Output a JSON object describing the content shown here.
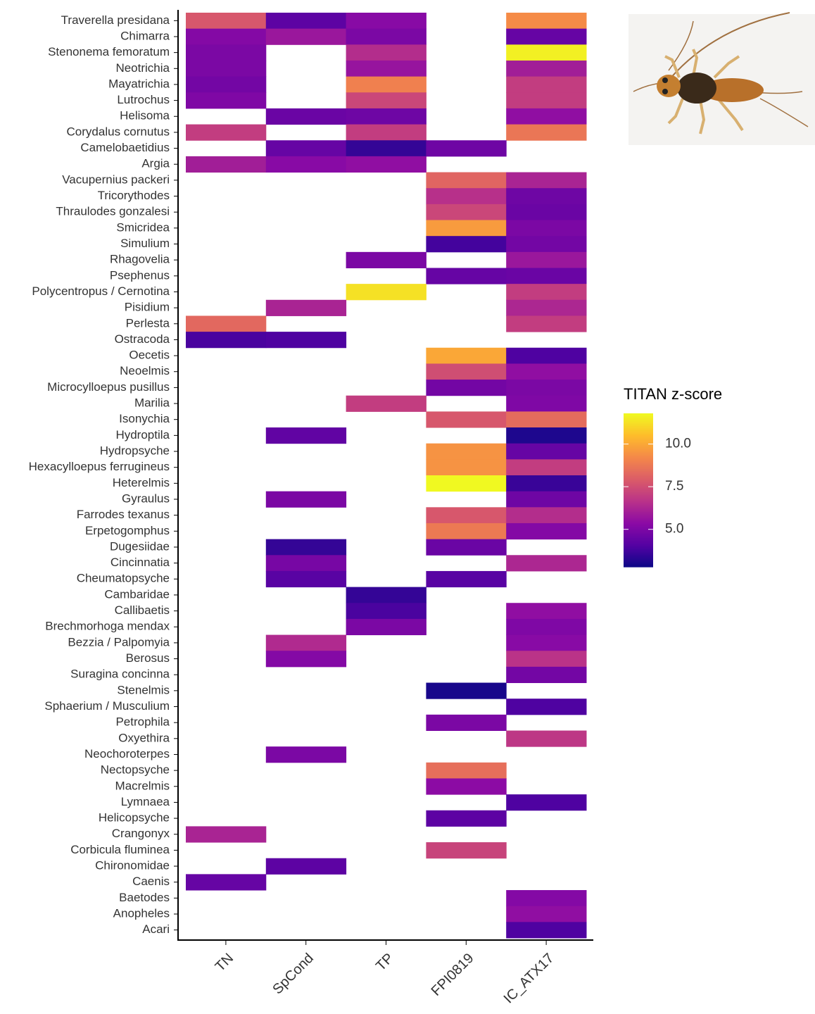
{
  "chart_data": {
    "type": "heatmap",
    "categories": [
      "Traverella presidana",
      "Chimarra",
      "Stenonema femoratum",
      "Neotrichia",
      "Mayatrichia",
      "Lutrochus",
      "Helisoma",
      "Corydalus cornutus",
      "Camelobaetidius",
      "Argia",
      "Vacupernius packeri",
      "Tricorythodes",
      "Thraulodes gonzalesi",
      "Smicridea",
      "Simulium",
      "Rhagovelia",
      "Psephenus",
      "Polycentropus / Cernotina",
      "Pisidium",
      "Perlesta",
      "Ostracoda",
      "Oecetis",
      "Neoelmis",
      "Microcylloepus pusillus",
      "Marilia",
      "Isonychia",
      "Hydroptila",
      "Hydropsyche",
      "Hexacylloepus ferrugineus",
      "Heterelmis",
      "Gyraulus",
      "Farrodes texanus",
      "Erpetogomphus",
      "Dugesiidae",
      "Cincinnatia",
      "Cheumatopsyche",
      "Cambaridae",
      "Callibaetis",
      "Brechmorhoga mendax",
      "Bezzia / Palpomyia",
      "Berosus",
      "Suragina concinna",
      "Stenelmis",
      "Sphaerium / Musculium",
      "Petrophila",
      "Oxyethira",
      "Neochoroterpes",
      "Nectopsyche",
      "Macrelmis",
      "Lymnaea",
      "Helicopsyche",
      "Crangonyx",
      "Corbicula fluminea",
      "Chironomidae",
      "Caenis",
      "Baetodes",
      "Anopheles",
      "Acari"
    ],
    "columns": [
      "TN",
      "SpCond",
      "TP",
      "FPI0819",
      "IC_ATX17"
    ],
    "values": [
      [
        7.8,
        4.3,
        5.3,
        null,
        9.3
      ],
      [
        5.2,
        5.8,
        5.0,
        null,
        4.5
      ],
      [
        5.0,
        null,
        6.5,
        null,
        11.6
      ],
      [
        5.0,
        null,
        5.7,
        null,
        6.0
      ],
      [
        4.8,
        null,
        9.0,
        null,
        7.0
      ],
      [
        5.1,
        null,
        7.3,
        null,
        7.0
      ],
      [
        null,
        4.6,
        4.7,
        null,
        5.5
      ],
      [
        7.0,
        null,
        7.0,
        null,
        8.7
      ],
      [
        null,
        4.5,
        3.5,
        4.7,
        null
      ],
      [
        6.0,
        5.3,
        5.5,
        null,
        null
      ],
      [
        null,
        null,
        null,
        8.2,
        6.2
      ],
      [
        null,
        null,
        null,
        6.6,
        4.7
      ],
      [
        null,
        null,
        null,
        7.3,
        4.6
      ],
      [
        null,
        null,
        null,
        9.7,
        5.0
      ],
      [
        null,
        null,
        null,
        3.8,
        4.8
      ],
      [
        null,
        null,
        5.0,
        null,
        5.8
      ],
      [
        null,
        null,
        null,
        4.5,
        4.6
      ],
      [
        null,
        null,
        11.3,
        null,
        7.0
      ],
      [
        null,
        6.2,
        null,
        null,
        6.3
      ],
      [
        8.3,
        null,
        null,
        null,
        7.0
      ],
      [
        3.9,
        4.0,
        null,
        null,
        null
      ],
      [
        null,
        null,
        null,
        10.0,
        4.0
      ],
      [
        null,
        null,
        null,
        7.5,
        5.5
      ],
      [
        null,
        null,
        null,
        4.8,
        5.0
      ],
      [
        null,
        null,
        7.0,
        null,
        5.1
      ],
      [
        null,
        null,
        null,
        7.8,
        8.4
      ],
      [
        null,
        4.4,
        null,
        null,
        3.1
      ],
      [
        null,
        null,
        null,
        9.5,
        4.5
      ],
      [
        null,
        null,
        null,
        9.5,
        7.0
      ],
      [
        null,
        null,
        null,
        11.8,
        3.6
      ],
      [
        null,
        5.0,
        null,
        null,
        4.7
      ],
      [
        null,
        null,
        null,
        7.8,
        6.5
      ],
      [
        null,
        null,
        null,
        8.8,
        5.2
      ],
      [
        null,
        3.5,
        null,
        4.6,
        null
      ],
      [
        null,
        4.9,
        null,
        null,
        6.3
      ],
      [
        null,
        4.2,
        null,
        4.2,
        null
      ],
      [
        null,
        null,
        3.5,
        null,
        null
      ],
      [
        null,
        null,
        3.9,
        null,
        5.5
      ],
      [
        null,
        null,
        5.0,
        null,
        5.1
      ],
      [
        null,
        6.4,
        null,
        null,
        5.3
      ],
      [
        null,
        5.2,
        null,
        null,
        6.7
      ],
      [
        null,
        null,
        null,
        null,
        4.8
      ],
      [
        null,
        null,
        null,
        3.0,
        null
      ],
      [
        null,
        null,
        null,
        null,
        4.0
      ],
      [
        null,
        null,
        null,
        5.0,
        null
      ],
      [
        null,
        null,
        null,
        null,
        6.8
      ],
      [
        null,
        5.0,
        null,
        null,
        null
      ],
      [
        null,
        null,
        null,
        8.5,
        null
      ],
      [
        null,
        null,
        null,
        5.4,
        null
      ],
      [
        null,
        null,
        null,
        null,
        4.0
      ],
      [
        null,
        null,
        null,
        4.3,
        null
      ],
      [
        6.2,
        null,
        null,
        null,
        null
      ],
      [
        null,
        null,
        null,
        7.2,
        null
      ],
      [
        null,
        4.3,
        null,
        null,
        null
      ],
      [
        4.5,
        null,
        null,
        null,
        null
      ],
      [
        null,
        null,
        null,
        null,
        5.2
      ],
      [
        null,
        null,
        null,
        null,
        5.5
      ],
      [
        null,
        null,
        null,
        null,
        4.0
      ]
    ],
    "colorbar_title": "TITAN z-score",
    "colormap": "plasma",
    "zlim": [
      2.8,
      11.8
    ],
    "zticks": [
      {
        "value": 5,
        "label": "5.0"
      },
      {
        "value": 7.5,
        "label": "7.5"
      },
      {
        "value": 10,
        "label": "10.0"
      }
    ]
  }
}
